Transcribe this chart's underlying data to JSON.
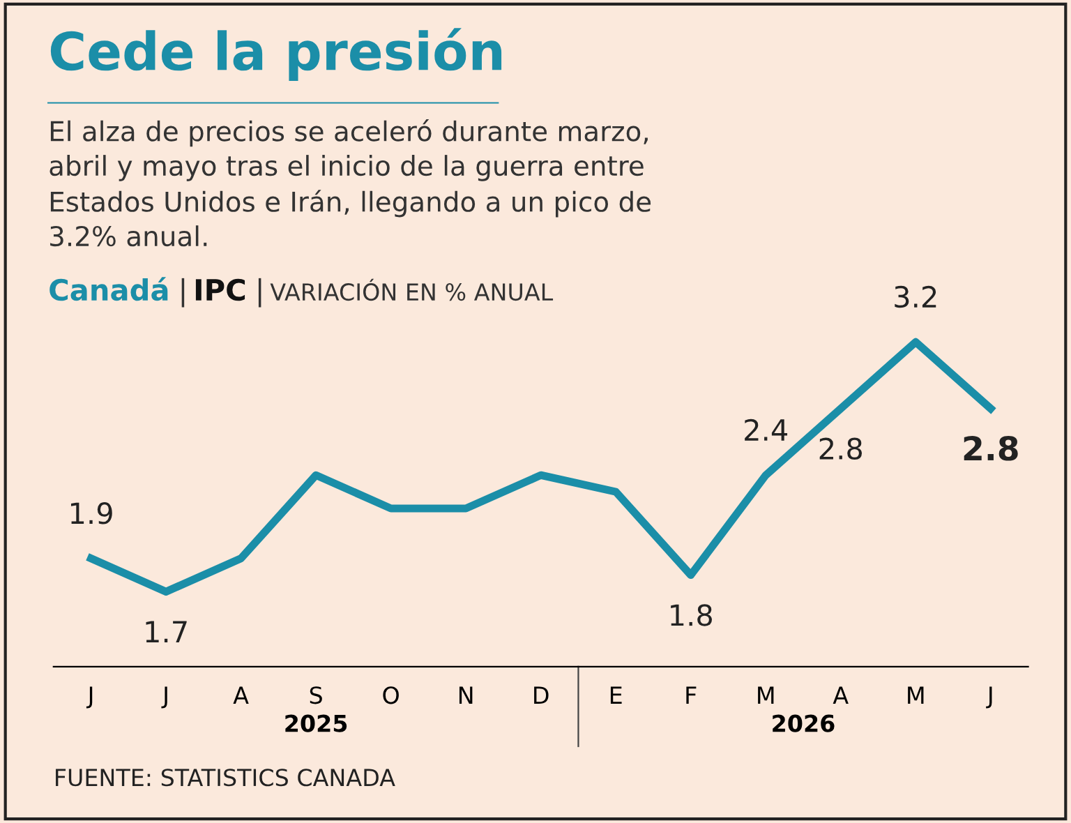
{
  "chart_data": {
    "type": "line",
    "title": "Cede la presión",
    "subtitle": "El alza de precios se aceleró durante marzo, abril y mayo tras el inicio de la guerra entre Estados Unidos e Irán, llegando a un pico de 3.2% anual.",
    "ylabel": "Canadá | IPC | VARIACIÓN EN % ANUAL",
    "categories": [
      "J",
      "J",
      "A",
      "S",
      "O",
      "N",
      "D",
      "E",
      "F",
      "M",
      "A",
      "M",
      "J"
    ],
    "series": [
      {
        "color": "#1b8ea8",
        "values": [
          1.9,
          1.7,
          1.9,
          2.4,
          2.2,
          2.2,
          2.4,
          2.3,
          1.8,
          2.4,
          2.8,
          3.2,
          2.8
        ],
        "value_labels": [
          "1.9",
          "1.7",
          null,
          null,
          null,
          null,
          null,
          null,
          "1.8",
          "2.4",
          "2.8",
          "3.2",
          "2.8"
        ]
      }
    ],
    "annotations": [
      "2025",
      "2026",
      "FUENTE: STATISTICS CANADA"
    ],
    "marker": "none",
    "grid": false,
    "legend": false
  }
}
